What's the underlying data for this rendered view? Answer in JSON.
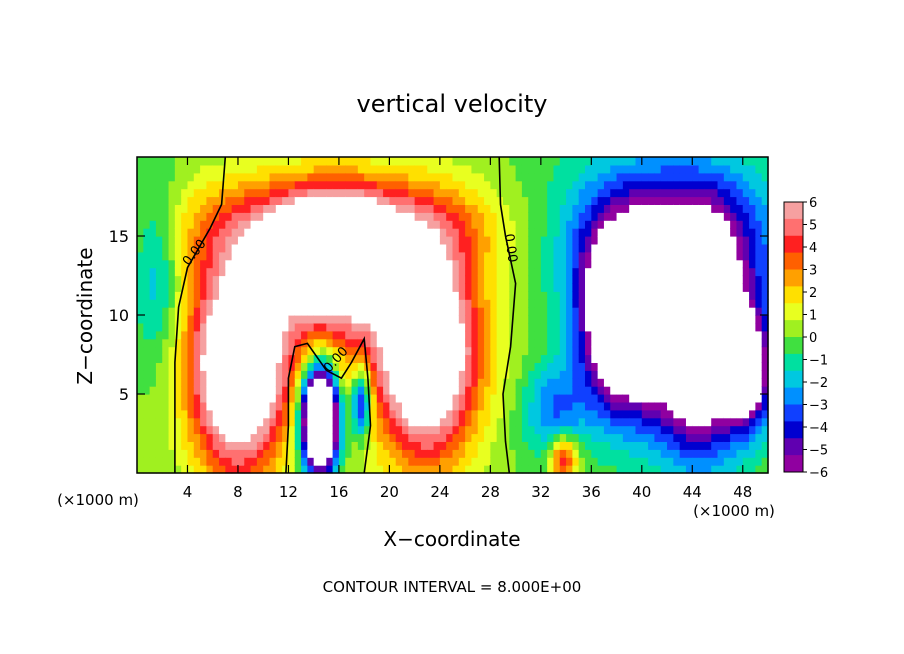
{
  "chart_data": {
    "type": "heatmap",
    "title": "vertical velocity",
    "xlabel": "X−coordinate",
    "ylabel": "Z−coordinate",
    "x_unit_left": "(×1000 m)",
    "x_unit_right": "(×1000 m)",
    "footer": "CONTOUR INTERVAL = 8.000E+00",
    "xlim": [
      0,
      50
    ],
    "ylim": [
      0,
      20
    ],
    "x_ticks": [
      "4",
      "8",
      "12",
      "16",
      "20",
      "24",
      "28",
      "32",
      "36",
      "40",
      "44",
      "48"
    ],
    "y_ticks": [
      "5",
      "10",
      "15"
    ],
    "colorbar": {
      "range": [
        -6,
        6
      ],
      "labels": [
        "6",
        "5",
        "4",
        "3",
        "2",
        "1",
        "0",
        "−1",
        "−2",
        "−3",
        "−4",
        "−5",
        "−6"
      ],
      "colors": [
        "#f6a0a0",
        "#ff7070",
        "#ff2020",
        "#ff6000",
        "#ffa000",
        "#ffe000",
        "#e8ff20",
        "#a0f020",
        "#40e040",
        "#00e0a0",
        "#00c8e0",
        "#0090ff",
        "#1040ff",
        "#0000d0",
        "#6000b0",
        "#9000a0"
      ],
      "saturation_color": "#ffffff"
    },
    "contour_label": "0.00",
    "features": [
      {
        "kind": "updraft_core",
        "x": 8,
        "z": 6,
        "value": 9
      },
      {
        "kind": "updraft_core",
        "x": 15.5,
        "z": 13.5,
        "value": 7.5
      },
      {
        "kind": "updraft_core",
        "x": 22.5,
        "z": 7.5,
        "value": 8
      },
      {
        "kind": "updraft_core",
        "x": 33.8,
        "z": 1.2,
        "value": 5
      },
      {
        "kind": "downdraft_core",
        "x": 14.5,
        "z": 3.5,
        "value": -7.5
      },
      {
        "kind": "downdraft_core",
        "x": 38,
        "z": 9.5,
        "value": -9
      },
      {
        "kind": "downdraft_core",
        "x": 45,
        "z": 8.5,
        "value": -9
      },
      {
        "kind": "downdraft_core",
        "x": 48.5,
        "z": 6.5,
        "value": -7
      }
    ]
  }
}
